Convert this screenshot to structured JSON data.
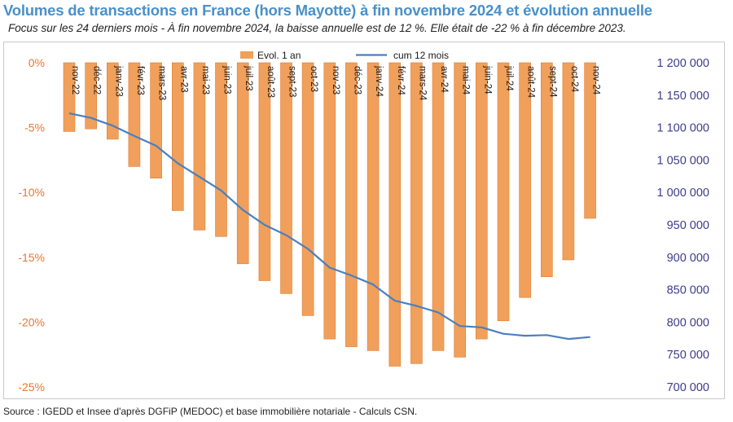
{
  "header": {
    "title": "Volumes de transactions en France (hors Mayotte) à fin novembre 2024 et évolution annuelle",
    "subtitle": "Focus sur les 24 derniers mois - À fin novembre 2024, la baisse annuelle est de 12 %. Elle était de -22 % à fin décembre 2023."
  },
  "footer": {
    "source": "Source : IGEDD et Insee d'après DGFiP (MEDOC) et base immobilière notariale - Calculs CSN."
  },
  "colors": {
    "bars": "#f0a05a",
    "bar_border": "#e07d35",
    "line": "#4a7fc1",
    "left_axis_text": "#e8772e",
    "right_axis_text": "#3c3c8c",
    "title": "#4a90c8"
  },
  "chart_data": {
    "type": "bar",
    "categories": [
      "nov-22",
      "déc-22",
      "janv-23",
      "févr-23",
      "mars-23",
      "avr-23",
      "mai-23",
      "juin-23",
      "juil-23",
      "août-23",
      "sept-23",
      "oct-23",
      "nov-23",
      "déc-23",
      "janv-24",
      "févr-24",
      "mars-24",
      "avr-24",
      "mai-24",
      "juin-24",
      "juil-24",
      "août-24",
      "sept-24",
      "oct-24",
      "nov-24"
    ],
    "series": [
      {
        "name": "Evol. 1 an",
        "type": "bar",
        "axis": "left",
        "values": [
          -5.3,
          -5.1,
          -5.9,
          -8.0,
          -8.9,
          -11.4,
          -12.9,
          -13.4,
          -15.5,
          -16.8,
          -17.8,
          -19.5,
          -21.3,
          -21.9,
          -22.2,
          -23.4,
          -23.2,
          -22.2,
          -22.7,
          -21.3,
          -19.9,
          -18.1,
          -16.5,
          -15.2,
          -12.0
        ]
      },
      {
        "name": "cum 12 mois",
        "type": "line",
        "axis": "right",
        "values": [
          1122000,
          1115000,
          1103000,
          1087000,
          1072000,
          1045000,
          1024000,
          1003000,
          973000,
          950000,
          934000,
          913000,
          884000,
          872000,
          858000,
          833000,
          825000,
          815000,
          794000,
          792000,
          782000,
          779000,
          780000,
          774000,
          777000
        ]
      }
    ],
    "left_axis": {
      "ylim": [
        -25,
        0
      ],
      "ticks": [
        0,
        -5,
        -10,
        -15,
        -20,
        -25
      ],
      "tick_labels": [
        "0%",
        "-5%",
        "-10%",
        "-15%",
        "-20%",
        "-25%"
      ]
    },
    "right_axis": {
      "ylim": [
        700000,
        1200000
      ],
      "ticks": [
        1200000,
        1150000,
        1100000,
        1050000,
        1000000,
        950000,
        900000,
        850000,
        800000,
        750000,
        700000
      ],
      "tick_labels": [
        "1 200 000",
        "1 150 000",
        "1 100 000",
        "1 050 000",
        "1 000 000",
        "950 000",
        "900 000",
        "850 000",
        "800 000",
        "750 000",
        "700 000"
      ]
    },
    "grid": false,
    "legend_placement": "top-center"
  }
}
